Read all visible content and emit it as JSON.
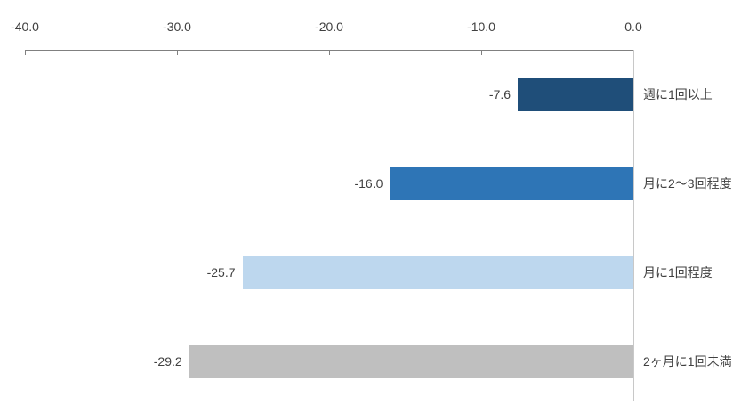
{
  "chart_data": {
    "type": "bar",
    "orientation": "horizontal",
    "title": "",
    "xlabel": "",
    "ylabel": "",
    "categories": [
      "週に1回以上",
      "月に2～3回程度",
      "月に1回程度",
      "2ヶ月に1回未満"
    ],
    "values": [
      -7.6,
      -16.0,
      -25.7,
      -29.2
    ],
    "value_labels": [
      "-7.6",
      "-16.0",
      "-25.7",
      "-29.2"
    ],
    "bar_colors": [
      "#1F4E79",
      "#2E75B6",
      "#BDD7EE",
      "#BFBFBF"
    ],
    "xlim": [
      -40,
      0
    ],
    "x_ticks": [
      -40,
      -30,
      -20,
      -10,
      0
    ],
    "x_tick_labels": [
      "-40.0",
      "-30.0",
      "-20.0",
      "-10.0",
      "0.0"
    ],
    "axis_position": "top",
    "grid": false,
    "legend": "none",
    "category_label_side": "right",
    "value_label_side": "left-of-bar"
  },
  "colors": {
    "background": "#FFFFFF",
    "axis_line": "#808080",
    "zero_line": "#C8C8C8",
    "text": "#404040"
  }
}
